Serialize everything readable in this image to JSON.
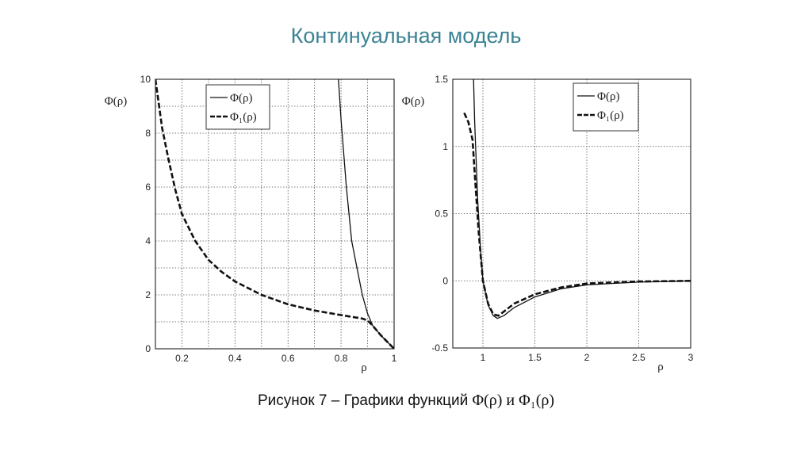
{
  "slide": {
    "title": "Континуальная модель",
    "caption_prefix": "Рисунок 7 – Графики функций ",
    "caption_math": "Φ(ρ) и Φ₁(ρ)"
  },
  "chart_data": [
    {
      "type": "line",
      "ylabel": "Φ(ρ)",
      "xlabel": "ρ",
      "xlim": [
        0.1,
        1
      ],
      "ylim": [
        0,
        10
      ],
      "xticks": [
        0.2,
        0.4,
        0.6,
        0.8,
        1
      ],
      "xtick_labels": [
        "0.2",
        "0.4",
        "0.6",
        "0.8",
        "1"
      ],
      "yticks": [
        0,
        2,
        4,
        6,
        8,
        10
      ],
      "ytick_labels": [
        "0",
        "2",
        "4",
        "6",
        "8",
        "10"
      ],
      "xgrid": [
        0.2,
        0.3,
        0.4,
        0.5,
        0.6,
        0.7,
        0.8,
        0.9
      ],
      "ygrid": [
        1,
        2,
        3,
        4,
        5,
        6,
        7,
        8,
        9
      ],
      "grid": true,
      "legend_position": "top-center",
      "series": [
        {
          "name": "Φ(ρ)",
          "style": "solid",
          "x": [
            0.79,
            0.8,
            0.82,
            0.84,
            0.86,
            0.88,
            0.9,
            0.92,
            0.95,
            1.0
          ],
          "y": [
            10,
            8.5,
            6,
            4,
            3,
            2,
            1.3,
            0.85,
            0.5,
            0
          ]
        },
        {
          "name": "Φ₁(ρ)",
          "style": "dashed",
          "x": [
            0.1,
            0.125,
            0.15,
            0.175,
            0.2,
            0.25,
            0.3,
            0.35,
            0.4,
            0.5,
            0.6,
            0.7,
            0.8,
            0.88,
            0.9,
            0.92,
            0.95,
            1.0
          ],
          "y": [
            10,
            8.2,
            7.0,
            5.9,
            5.0,
            4.0,
            3.3,
            2.85,
            2.5,
            2.0,
            1.65,
            1.42,
            1.25,
            1.12,
            1.05,
            0.85,
            0.5,
            0
          ]
        }
      ]
    },
    {
      "type": "line",
      "ylabel": "Φ(ρ)",
      "xlabel": "ρ",
      "xlim": [
        0.71,
        3
      ],
      "ylim": [
        -0.5,
        1.5
      ],
      "xticks": [
        1,
        1.5,
        2,
        2.5,
        3
      ],
      "xtick_labels": [
        "1",
        "1.5",
        "2",
        "2.5",
        "3"
      ],
      "yticks": [
        -0.5,
        0,
        0.5,
        1,
        1.5
      ],
      "ytick_labels": [
        "-0.5",
        "0",
        "0.5",
        "1",
        "1.5"
      ],
      "xgrid": [
        1,
        1.5,
        2,
        2.5
      ],
      "ygrid": [
        0,
        0.5,
        1
      ],
      "grid": true,
      "legend_position": "top-right",
      "series": [
        {
          "name": "Φ(ρ)",
          "style": "solid",
          "x": [
            0.91,
            0.92,
            0.95,
            0.98,
            1.0,
            1.05,
            1.1,
            1.14,
            1.2,
            1.3,
            1.5,
            1.75,
            2.0,
            2.5,
            3.0
          ],
          "y": [
            1.5,
            1.2,
            0.6,
            0.2,
            0,
            -0.18,
            -0.26,
            -0.28,
            -0.26,
            -0.2,
            -0.12,
            -0.06,
            -0.03,
            -0.01,
            0
          ]
        },
        {
          "name": "Φ₁(ρ)",
          "style": "dashed",
          "x": [
            0.82,
            0.86,
            0.9,
            0.93,
            0.96,
            1.0,
            1.05,
            1.1,
            1.15,
            1.3,
            1.5,
            1.75,
            2.0,
            2.5,
            3.0
          ],
          "y": [
            1.25,
            1.18,
            1.05,
            0.7,
            0.35,
            0,
            -0.17,
            -0.25,
            -0.26,
            -0.17,
            -0.1,
            -0.05,
            -0.02,
            -0.005,
            0
          ]
        }
      ]
    }
  ]
}
